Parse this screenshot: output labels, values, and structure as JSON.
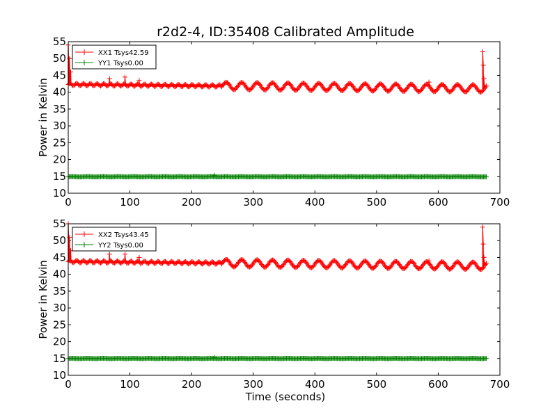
{
  "title": "r2d2-4, ID:35408 Calibrated Amplitude",
  "colors": {
    "xx": "#ff0000",
    "yy": "#008000"
  },
  "chart_data": [
    {
      "type": "line",
      "title": "r2d2-4, ID:35408 Calibrated Amplitude",
      "xlabel": "",
      "ylabel": "Power in Kelvin",
      "xlim": [
        0,
        700
      ],
      "ylim": [
        10,
        55
      ],
      "xticks": [
        "0",
        "100",
        "200",
        "300",
        "400",
        "500",
        "600",
        "700"
      ],
      "yticks": [
        "10",
        "15",
        "20",
        "25",
        "30",
        "35",
        "40",
        "45",
        "50",
        "55"
      ],
      "grid": false,
      "legend_position": "top-left",
      "series": [
        {
          "name": "XX1 Tsys42.59",
          "color": "#ff0000",
          "marker": "+",
          "baseline": 42.3,
          "trend": -1.2,
          "ripple_amplitude": 1.1,
          "ripple_start": 250,
          "ripple_period": 25,
          "end_x": 678,
          "spikes": [
            [
              0,
              54
            ],
            [
              2,
              50
            ],
            [
              4,
              46
            ],
            [
              67,
              44
            ],
            [
              92,
              44.5
            ],
            [
              115,
              43.5
            ],
            [
              585,
              43
            ],
            [
              672,
              52
            ],
            [
              673,
              48
            ],
            [
              674,
              44
            ],
            [
              676,
              41.5
            ]
          ]
        },
        {
          "name": "YY1 Tsys0.00",
          "color": "#008000",
          "marker": "+",
          "baseline": 14.9,
          "trend": 0,
          "ripple_amplitude": 0.05,
          "ripple_start": 0,
          "ripple_period": 25,
          "end_x": 678,
          "spikes": [
            [
              237,
              15.3
            ]
          ]
        }
      ]
    },
    {
      "type": "line",
      "title": "",
      "xlabel": "Time (seconds)",
      "ylabel": "Power in Kelvin",
      "xlim": [
        0,
        700
      ],
      "ylim": [
        10,
        55
      ],
      "xticks": [
        "0",
        "100",
        "200",
        "300",
        "400",
        "500",
        "600",
        "700"
      ],
      "yticks": [
        "10",
        "15",
        "20",
        "25",
        "30",
        "35",
        "40",
        "45",
        "50",
        "55"
      ],
      "grid": false,
      "legend_position": "top-left",
      "series": [
        {
          "name": "XX2 Tsys43.45",
          "color": "#ff0000",
          "marker": "+",
          "baseline": 43.8,
          "trend": -1.3,
          "ripple_amplitude": 1.1,
          "ripple_start": 250,
          "ripple_period": 25,
          "end_x": 678,
          "spikes": [
            [
              0,
              55
            ],
            [
              2,
              51
            ],
            [
              4,
              47
            ],
            [
              67,
              46
            ],
            [
              92,
              46
            ],
            [
              115,
              45
            ],
            [
              585,
              44
            ],
            [
              672,
              54
            ],
            [
              673,
              49
            ],
            [
              674,
              45
            ],
            [
              676,
              43
            ]
          ]
        },
        {
          "name": "YY2 Tsys0.00",
          "color": "#008000",
          "marker": "+",
          "baseline": 15.0,
          "trend": 0,
          "ripple_amplitude": 0.05,
          "ripple_start": 0,
          "ripple_period": 25,
          "end_x": 678,
          "spikes": [
            [
              237,
              15.3
            ]
          ]
        }
      ]
    }
  ]
}
